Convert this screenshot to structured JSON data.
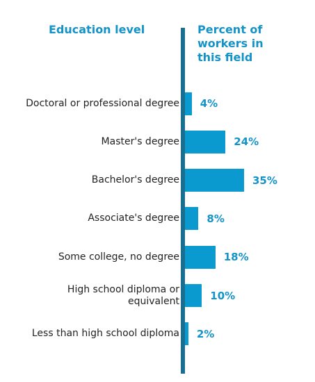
{
  "header": {
    "left": "Education level",
    "right": "Percent of\nworkers in\nthis field"
  },
  "colors": {
    "bar": "#0a9ad0",
    "header_text": "#1493c9",
    "axis": "#1a6e8f"
  },
  "chart_data": {
    "type": "bar",
    "orientation": "horizontal",
    "categories": [
      "Doctoral or professional degree",
      "Master's degree",
      "Bachelor's degree",
      "Associate's degree",
      "Some college, no degree",
      "High school diploma or\nequivalent",
      "Less than high school diploma"
    ],
    "values": [
      4,
      24,
      35,
      8,
      18,
      10,
      2
    ],
    "value_labels": [
      "4%",
      "24%",
      "35%",
      "8%",
      "18%",
      "10%",
      "2%"
    ],
    "unit": "%",
    "xlim": [
      0,
      35
    ],
    "grid": false,
    "legend": "none"
  }
}
